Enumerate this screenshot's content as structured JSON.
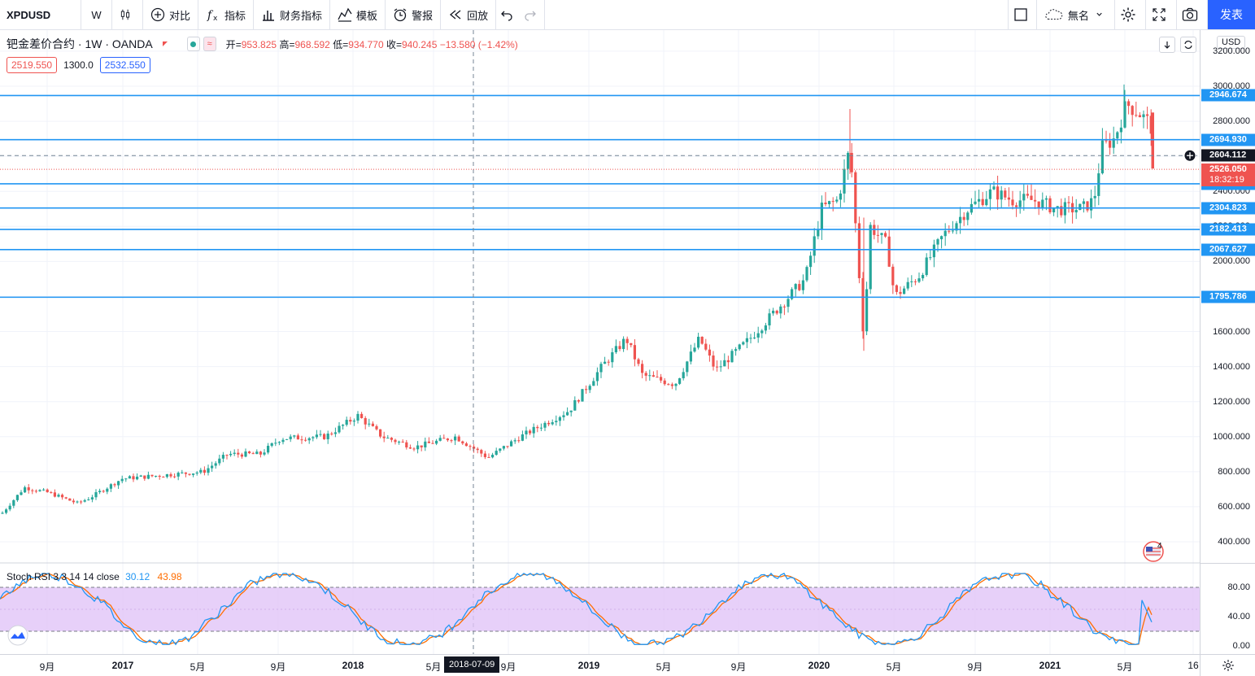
{
  "toolbar": {
    "symbol": "XPDUSD",
    "interval": "W",
    "compare": "对比",
    "indicators": "指标",
    "financials": "财务指标",
    "templates": "模板",
    "alert": "警报",
    "replay": "回放",
    "layout_name": "無名",
    "publish": "发表"
  },
  "legend": {
    "title": "钯金差价合约 · 1W · OANDA",
    "open_label": "开",
    "open": "953.825",
    "high_label": "高",
    "high": "968.592",
    "low_label": "低",
    "low": "934.770",
    "close_label": "收",
    "close": "940.245",
    "change": "−13.580 (−1.42%)"
  },
  "prices": {
    "sell": "2519.550",
    "spread": "1300.0",
    "buy": "2532.550"
  },
  "price_axis": {
    "currency": "USD",
    "ticks": [
      "3200.000",
      "3000.000",
      "2800.000",
      "2600.000",
      "2400.000",
      "2200.000",
      "2000.000",
      "1800.000",
      "1600.000",
      "1400.000",
      "1200.000",
      "1000.000",
      "800.000",
      "600.000",
      "400.000"
    ],
    "crosshair_price": "2604.112",
    "last_price": "2526.050",
    "countdown": "18:32:19"
  },
  "levels": [
    {
      "label": "2946.674",
      "color": "#2196f3"
    },
    {
      "label": "2694.930",
      "color": "#2196f3"
    },
    {
      "label": "2443.197",
      "color": "#2196f3"
    },
    {
      "label": "2304.823",
      "color": "#2196f3"
    },
    {
      "label": "2182.413",
      "color": "#2196f3"
    },
    {
      "label": "2067.627",
      "color": "#2196f3"
    },
    {
      "label": "1795.786",
      "color": "#2196f3"
    }
  ],
  "stoch": {
    "name": "Stoch RSI 3 3 14 14 close",
    "k": "30.12",
    "d": "43.98",
    "ticks": [
      "80.00",
      "40.00",
      "0.00"
    ],
    "k_color": "#2196f3",
    "d_color": "#ff6d00",
    "band_color": "#e1c4f7"
  },
  "time_axis": {
    "labels": [
      "9月",
      "2017",
      "5月",
      "9月",
      "2018",
      "5月",
      "9月",
      "2019",
      "5月",
      "9月",
      "2020",
      "5月",
      "9月",
      "2021",
      "5月",
      "16"
    ],
    "cursor_date": "2018-07-09"
  },
  "colors": {
    "up": "#26a69a",
    "down": "#ef5350",
    "level": "#2196f3",
    "accent": "#2962ff"
  },
  "events_badge": "4"
}
